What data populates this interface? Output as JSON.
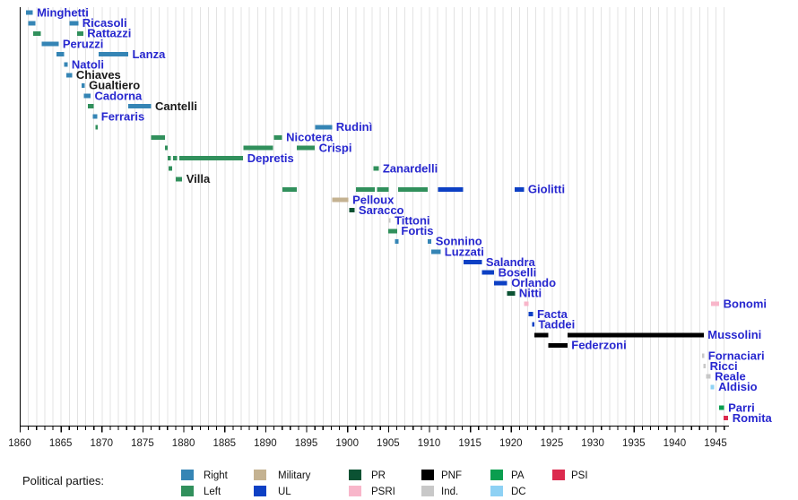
{
  "page": {
    "background": "#ffffff"
  },
  "legend": {
    "title": "Political parties:",
    "columns": [
      [
        {
          "party": "Right",
          "label": "Right"
        },
        {
          "party": "Left",
          "label": "Left"
        }
      ],
      [
        {
          "party": "Military",
          "label": "Military"
        },
        {
          "party": "UL",
          "label": "UL"
        }
      ],
      [
        {
          "party": "PR",
          "label": "PR"
        },
        {
          "party": "PSRI",
          "label": "PSRI"
        }
      ],
      [
        {
          "party": "PNF",
          "label": "PNF"
        },
        {
          "party": "Ind",
          "label": "Ind."
        }
      ],
      [
        {
          "party": "PA",
          "label": "PA"
        },
        {
          "party": "DC",
          "label": "DC"
        }
      ],
      [
        {
          "party": "PSI",
          "label": "PSI"
        }
      ]
    ]
  },
  "chart_data": {
    "type": "gantt-timeline",
    "description_visible": false,
    "x_axis": {
      "min": 1860,
      "max": 1946.6,
      "major_tick_step": 5,
      "minor_tick_step": 1,
      "major_ticks": [
        1860,
        1865,
        1870,
        1875,
        1880,
        1885,
        1890,
        1895,
        1900,
        1905,
        1910,
        1915,
        1920,
        1925,
        1930,
        1935,
        1940,
        1945
      ],
      "major_tick_labels": [
        "1860",
        "1865",
        "1870",
        "1875",
        "1880",
        "1885",
        "1890",
        "1895",
        "1900",
        "1905",
        "1910",
        "1915",
        "1920",
        "1925",
        "1930",
        "1935",
        "1940",
        "1945"
      ],
      "grid": true
    },
    "party_colors": {
      "Right": "#3585b5",
      "Left": "#31905c",
      "Military": "#c4b291",
      "UL": "#0d40c4",
      "PR": "#0b5233",
      "PSRI": "#f8b6ca",
      "PNF": "#000000",
      "Ind": "#c8c8c8",
      "PA": "#0a9e4f",
      "DC": "#8ed1f4",
      "PSI": "#dc2a4e"
    },
    "label_text_colors": {
      "blue": "#2727cf",
      "black": "#1a1a1a"
    },
    "rows": [
      {
        "row": 0,
        "name": "Minghetti",
        "label_color": "blue",
        "bars": [
          {
            "start": 1860.75,
            "end": 1861.6,
            "party": "Right"
          }
        ]
      },
      {
        "row": 1,
        "name": "Ricasoli",
        "label_color": "blue",
        "bars": [
          {
            "start": 1861.05,
            "end": 1861.9,
            "party": "Right"
          },
          {
            "start": 1866.1,
            "end": 1867.15,
            "party": "Right"
          }
        ]
      },
      {
        "row": 2,
        "name": "Rattazzi",
        "label_color": "blue",
        "bars": [
          {
            "start": 1861.65,
            "end": 1862.55,
            "party": "Left"
          },
          {
            "start": 1867.0,
            "end": 1867.75,
            "party": "Left"
          }
        ]
      },
      {
        "row": 3,
        "name": "Peruzzi",
        "label_color": "blue",
        "bars": [
          {
            "start": 1862.7,
            "end": 1864.75,
            "party": "Right"
          }
        ]
      },
      {
        "row": 4,
        "name": "Lanza",
        "label_color": "blue",
        "bars": [
          {
            "start": 1864.5,
            "end": 1865.4,
            "party": "Right"
          },
          {
            "start": 1869.65,
            "end": 1873.25,
            "party": "Right"
          }
        ]
      },
      {
        "row": 5,
        "name": "Natoli",
        "label_color": "blue",
        "bars": [
          {
            "start": 1865.4,
            "end": 1865.85,
            "party": "Right"
          }
        ]
      },
      {
        "row": 6,
        "name": "Chiaves",
        "label_color": "black",
        "bars": [
          {
            "start": 1865.7,
            "end": 1866.4,
            "party": "Right"
          }
        ]
      },
      {
        "row": 7,
        "name": "Gualtiero",
        "label_color": "black",
        "bars": [
          {
            "start": 1867.55,
            "end": 1867.95,
            "party": "Right"
          }
        ]
      },
      {
        "row": 8,
        "name": "Cadorna",
        "label_color": "blue",
        "bars": [
          {
            "start": 1867.85,
            "end": 1868.65,
            "party": "Right"
          }
        ]
      },
      {
        "row": 9,
        "name": "Cantelli",
        "label_color": "black",
        "bars": [
          {
            "start": 1868.3,
            "end": 1869.05,
            "party": "Left"
          },
          {
            "start": 1873.25,
            "end": 1876.05,
            "party": "Right"
          }
        ]
      },
      {
        "row": 10,
        "name": "Ferraris",
        "label_color": "blue",
        "bars": [
          {
            "start": 1868.95,
            "end": 1869.45,
            "party": "Right"
          }
        ]
      },
      {
        "row": 11,
        "name": "Rudinì",
        "label_color": "blue",
        "bars": [
          {
            "start": 1869.25,
            "end": 1869.55,
            "party": "Left"
          },
          {
            "start": 1896.1,
            "end": 1898.15,
            "party": "Right"
          }
        ]
      },
      {
        "row": 12,
        "name": "Nicotera",
        "label_color": "blue",
        "bars": [
          {
            "start": 1876.05,
            "end": 1877.75,
            "party": "Left"
          },
          {
            "start": 1891.05,
            "end": 1892.05,
            "party": "Left"
          }
        ]
      },
      {
        "row": 13,
        "name": "Crispi",
        "label_color": "blue",
        "bars": [
          {
            "start": 1877.75,
            "end": 1878.05,
            "party": "Left"
          },
          {
            "start": 1887.35,
            "end": 1890.95,
            "party": "Left"
          },
          {
            "start": 1893.85,
            "end": 1896.05,
            "party": "Left"
          }
        ]
      },
      {
        "row": 14,
        "name": "Depretis",
        "label_color": "blue",
        "bars": [
          {
            "start": 1878.05,
            "end": 1878.45,
            "party": "Left"
          },
          {
            "start": 1878.75,
            "end": 1879.2,
            "party": "Left"
          },
          {
            "start": 1879.5,
            "end": 1887.3,
            "party": "Left"
          }
        ]
      },
      {
        "row": 15,
        "name": "Zanardelli",
        "label_color": "blue",
        "bars": [
          {
            "start": 1878.2,
            "end": 1878.6,
            "party": "Left"
          },
          {
            "start": 1903.2,
            "end": 1903.85,
            "party": "Left"
          }
        ]
      },
      {
        "row": 16,
        "name": "Villa",
        "label_color": "black",
        "bars": [
          {
            "start": 1879.05,
            "end": 1879.85,
            "party": "Left"
          }
        ]
      },
      {
        "row": 17,
        "name": "Giolitti",
        "label_color": "blue",
        "bars": [
          {
            "start": 1892.1,
            "end": 1893.85,
            "party": "Left"
          },
          {
            "start": 1901.05,
            "end": 1903.4,
            "party": "Left"
          },
          {
            "start": 1903.65,
            "end": 1905.05,
            "party": "Left"
          },
          {
            "start": 1906.2,
            "end": 1909.85,
            "party": "Left"
          },
          {
            "start": 1911.1,
            "end": 1914.15,
            "party": "UL"
          },
          {
            "start": 1920.45,
            "end": 1921.6,
            "party": "UL"
          }
        ]
      },
      {
        "row": 18,
        "name": "Pelloux",
        "label_color": "blue",
        "bars": [
          {
            "start": 1898.15,
            "end": 1900.15,
            "party": "Military"
          }
        ]
      },
      {
        "row": 19,
        "name": "Saracco",
        "label_color": "blue",
        "bars": [
          {
            "start": 1900.25,
            "end": 1900.9,
            "party": "PR"
          }
        ]
      },
      {
        "row": 20,
        "name": "Tittoni",
        "label_color": "blue",
        "bars": [
          {
            "start": 1905.05,
            "end": 1905.3,
            "party": "Ind"
          }
        ]
      },
      {
        "row": 21,
        "name": "Fortis",
        "label_color": "blue",
        "bars": [
          {
            "start": 1905.0,
            "end": 1906.1,
            "party": "Left"
          }
        ]
      },
      {
        "row": 22,
        "name": "Sonnino",
        "label_color": "blue",
        "bars": [
          {
            "start": 1905.85,
            "end": 1906.3,
            "party": "Right"
          },
          {
            "start": 1909.85,
            "end": 1910.3,
            "party": "Right"
          }
        ]
      },
      {
        "row": 23,
        "name": "Luzzati",
        "label_color": "blue",
        "bars": [
          {
            "start": 1910.3,
            "end": 1911.4,
            "party": "Right"
          }
        ]
      },
      {
        "row": 24,
        "name": "Salandra",
        "label_color": "blue",
        "bars": [
          {
            "start": 1914.2,
            "end": 1916.45,
            "party": "UL"
          }
        ]
      },
      {
        "row": 25,
        "name": "Boselli",
        "label_color": "blue",
        "bars": [
          {
            "start": 1916.45,
            "end": 1917.95,
            "party": "UL"
          }
        ]
      },
      {
        "row": 26,
        "name": "Orlando",
        "label_color": "blue",
        "bars": [
          {
            "start": 1917.95,
            "end": 1919.55,
            "party": "UL"
          }
        ]
      },
      {
        "row": 27,
        "name": "Nitti",
        "label_color": "blue",
        "bars": [
          {
            "start": 1919.55,
            "end": 1920.5,
            "party": "PR"
          }
        ]
      },
      {
        "row": 28,
        "name": "Bonomi",
        "label_color": "blue",
        "bars": [
          {
            "start": 1921.6,
            "end": 1922.15,
            "party": "PSRI"
          },
          {
            "start": 1944.45,
            "end": 1945.45,
            "party": "PSRI"
          }
        ]
      },
      {
        "row": 29,
        "name": "Facta",
        "label_color": "blue",
        "bars": [
          {
            "start": 1922.15,
            "end": 1922.7,
            "party": "UL"
          }
        ]
      },
      {
        "row": 30,
        "name": "Taddei",
        "label_color": "blue",
        "bars": [
          {
            "start": 1922.6,
            "end": 1922.85,
            "party": "UL"
          }
        ]
      },
      {
        "row": 31,
        "name": "Mussolini",
        "label_color": "blue",
        "bars": [
          {
            "start": 1922.85,
            "end": 1924.55,
            "party": "PNF"
          },
          {
            "start": 1926.9,
            "end": 1943.55,
            "party": "PNF"
          }
        ]
      },
      {
        "row": 32,
        "name": "Federzoni",
        "label_color": "blue",
        "bars": [
          {
            "start": 1924.55,
            "end": 1926.9,
            "party": "PNF"
          }
        ]
      },
      {
        "row": 33,
        "name": "Fornaciari",
        "label_color": "blue",
        "bars": [
          {
            "start": 1943.35,
            "end": 1943.6,
            "party": "Ind"
          }
        ]
      },
      {
        "row": 34,
        "name": "Ricci",
        "label_color": "blue",
        "bars": [
          {
            "start": 1943.5,
            "end": 1943.8,
            "party": "Ind"
          }
        ]
      },
      {
        "row": 35,
        "name": "Reale",
        "label_color": "blue",
        "bars": [
          {
            "start": 1943.85,
            "end": 1944.4,
            "party": "Ind"
          }
        ]
      },
      {
        "row": 36,
        "name": "Aldisio",
        "label_color": "blue",
        "bars": [
          {
            "start": 1944.4,
            "end": 1944.85,
            "party": "DC"
          }
        ]
      },
      {
        "row": 38,
        "name": "Parri",
        "label_color": "blue",
        "bars": [
          {
            "start": 1945.45,
            "end": 1946.05,
            "party": "PA"
          }
        ]
      },
      {
        "row": 39,
        "name": "Romita",
        "label_color": "blue",
        "bars": [
          {
            "start": 1946.0,
            "end": 1946.55,
            "party": "PSI"
          }
        ]
      }
    ]
  }
}
